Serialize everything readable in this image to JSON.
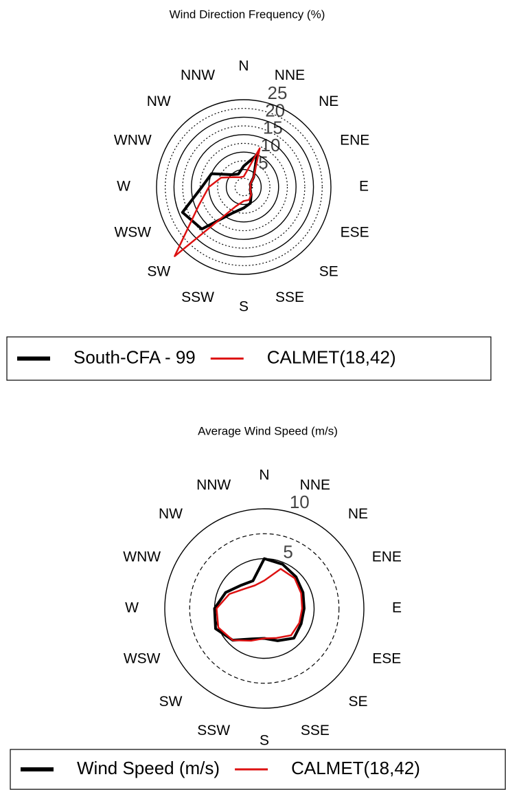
{
  "chart_data": [
    {
      "type": "radar",
      "title": "Wind Direction Frequency (%)",
      "categories": [
        "N",
        "NNE",
        "NE",
        "ENE",
        "E",
        "ESE",
        "SE",
        "SSE",
        "S",
        "SSW",
        "SW",
        "WSW",
        "W",
        "WNW",
        "NW",
        "NNW"
      ],
      "series": [
        {
          "name": "South-CFA - 99",
          "color": "#000000",
          "values": [
            6,
            10,
            4,
            2,
            2,
            2,
            3,
            5,
            6,
            8,
            17,
            19,
            12,
            10,
            5,
            4
          ]
        },
        {
          "name": "CALMET(18,42)",
          "color": "#dd1111",
          "values": [
            3,
            12,
            4,
            2,
            2,
            2,
            3,
            4,
            4,
            6,
            28,
            14,
            10,
            7,
            4,
            3
          ]
        }
      ],
      "ylim": [
        0,
        25
      ],
      "yticks": [
        5,
        10,
        15,
        20,
        25
      ],
      "minor_yticks": [
        2.5,
        7.5,
        12.5,
        17.5,
        22.5
      ],
      "minor_grid_style": "dotted"
    },
    {
      "type": "radar",
      "title": "Average Wind Speed (m/s)",
      "categories": [
        "N",
        "NNE",
        "NE",
        "ENE",
        "E",
        "ESE",
        "SE",
        "SSE",
        "S",
        "SSW",
        "SW",
        "WSW",
        "W",
        "WNW",
        "NW",
        "NNW"
      ],
      "series": [
        {
          "name": "Wind Speed (m/s)",
          "color": "#000000",
          "values": [
            5,
            4.8,
            4.5,
            4.2,
            4,
            4,
            4.2,
            3.5,
            3,
            3.3,
            4.5,
            5.3,
            5,
            4.2,
            3.3,
            3
          ]
        },
        {
          "name": "CALMET(18,42)",
          "color": "#dd1111",
          "values": [
            2.8,
            4.3,
            4.3,
            4,
            3.8,
            3.8,
            3.8,
            3.2,
            3,
            3.5,
            4.5,
            5,
            4.8,
            3.8,
            2.8,
            2.5
          ]
        }
      ],
      "ylim": [
        0,
        10
      ],
      "yticks": [
        5,
        10
      ],
      "minor_yticks": [
        7.5
      ],
      "minor_grid_style": "dashed"
    }
  ]
}
